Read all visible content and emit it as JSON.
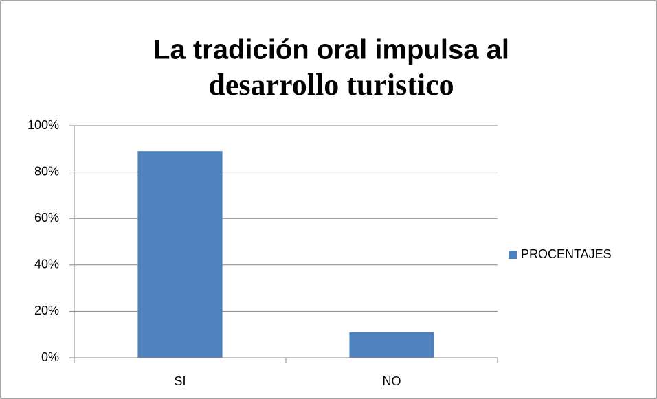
{
  "chart_data": {
    "type": "bar",
    "title": [
      "La tradición oral impulsa al",
      "desarrollo turistico"
    ],
    "categories": [
      "SI",
      "NO"
    ],
    "series": [
      {
        "name": "PROCENTAJES",
        "color": "#4f81bd",
        "values": [
          89,
          11
        ]
      }
    ],
    "ylim": [
      0,
      100
    ],
    "yticks": [
      {
        "value": 0,
        "label": "0%"
      },
      {
        "value": 20,
        "label": "20%"
      },
      {
        "value": 40,
        "label": "40%"
      },
      {
        "value": 60,
        "label": "60%"
      },
      {
        "value": 80,
        "label": "80%"
      },
      {
        "value": 100,
        "label": "100%"
      }
    ],
    "grid": true,
    "legend": "right"
  }
}
